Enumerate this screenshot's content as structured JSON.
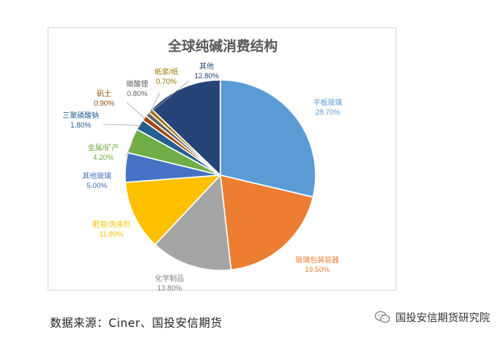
{
  "chart_data": {
    "type": "pie",
    "title": "全球纯碱消费结构",
    "slices": [
      {
        "label": "平板玻璃",
        "value_label": "28.70%",
        "value": 28.7,
        "color": "#5b9bd5"
      },
      {
        "label": "玻璃包装容器",
        "value_label": "19.50%",
        "value": 19.5,
        "color": "#ed7d31"
      },
      {
        "label": "化学制品",
        "value_label": "13.80%",
        "value": 13.8,
        "color": "#a5a5a5"
      },
      {
        "label": "肥皂/洗涤剂",
        "value_label": "11.80%",
        "value": 11.8,
        "color": "#ffc000"
      },
      {
        "label": "其他玻璃",
        "value_label": "5.00%",
        "value": 5.0,
        "color": "#4472c4"
      },
      {
        "label": "金属/矿产",
        "value_label": "4.20%",
        "value": 4.2,
        "color": "#70ad47"
      },
      {
        "label": "三聚磷酸钠",
        "value_label": "1.80%",
        "value": 1.8,
        "color": "#255e91"
      },
      {
        "label": "矾土",
        "value_label": "0.90%",
        "value": 0.9,
        "color": "#9e480e"
      },
      {
        "label": "碳酸锂",
        "value_label": "0.80%",
        "value": 0.8,
        "color": "#636363"
      },
      {
        "label": "纸浆/纸",
        "value_label": "0.70%",
        "value": 0.7,
        "color": "#997300"
      },
      {
        "label": "其他",
        "value_label": "12.80%",
        "value": 12.8,
        "color": "#264478"
      }
    ]
  },
  "footer": {
    "source": "数据来源：Ciner、国投安信期货",
    "watermark": "国投安信期货研究院"
  },
  "icons": {
    "watermark_icon": "wechat-icon"
  }
}
